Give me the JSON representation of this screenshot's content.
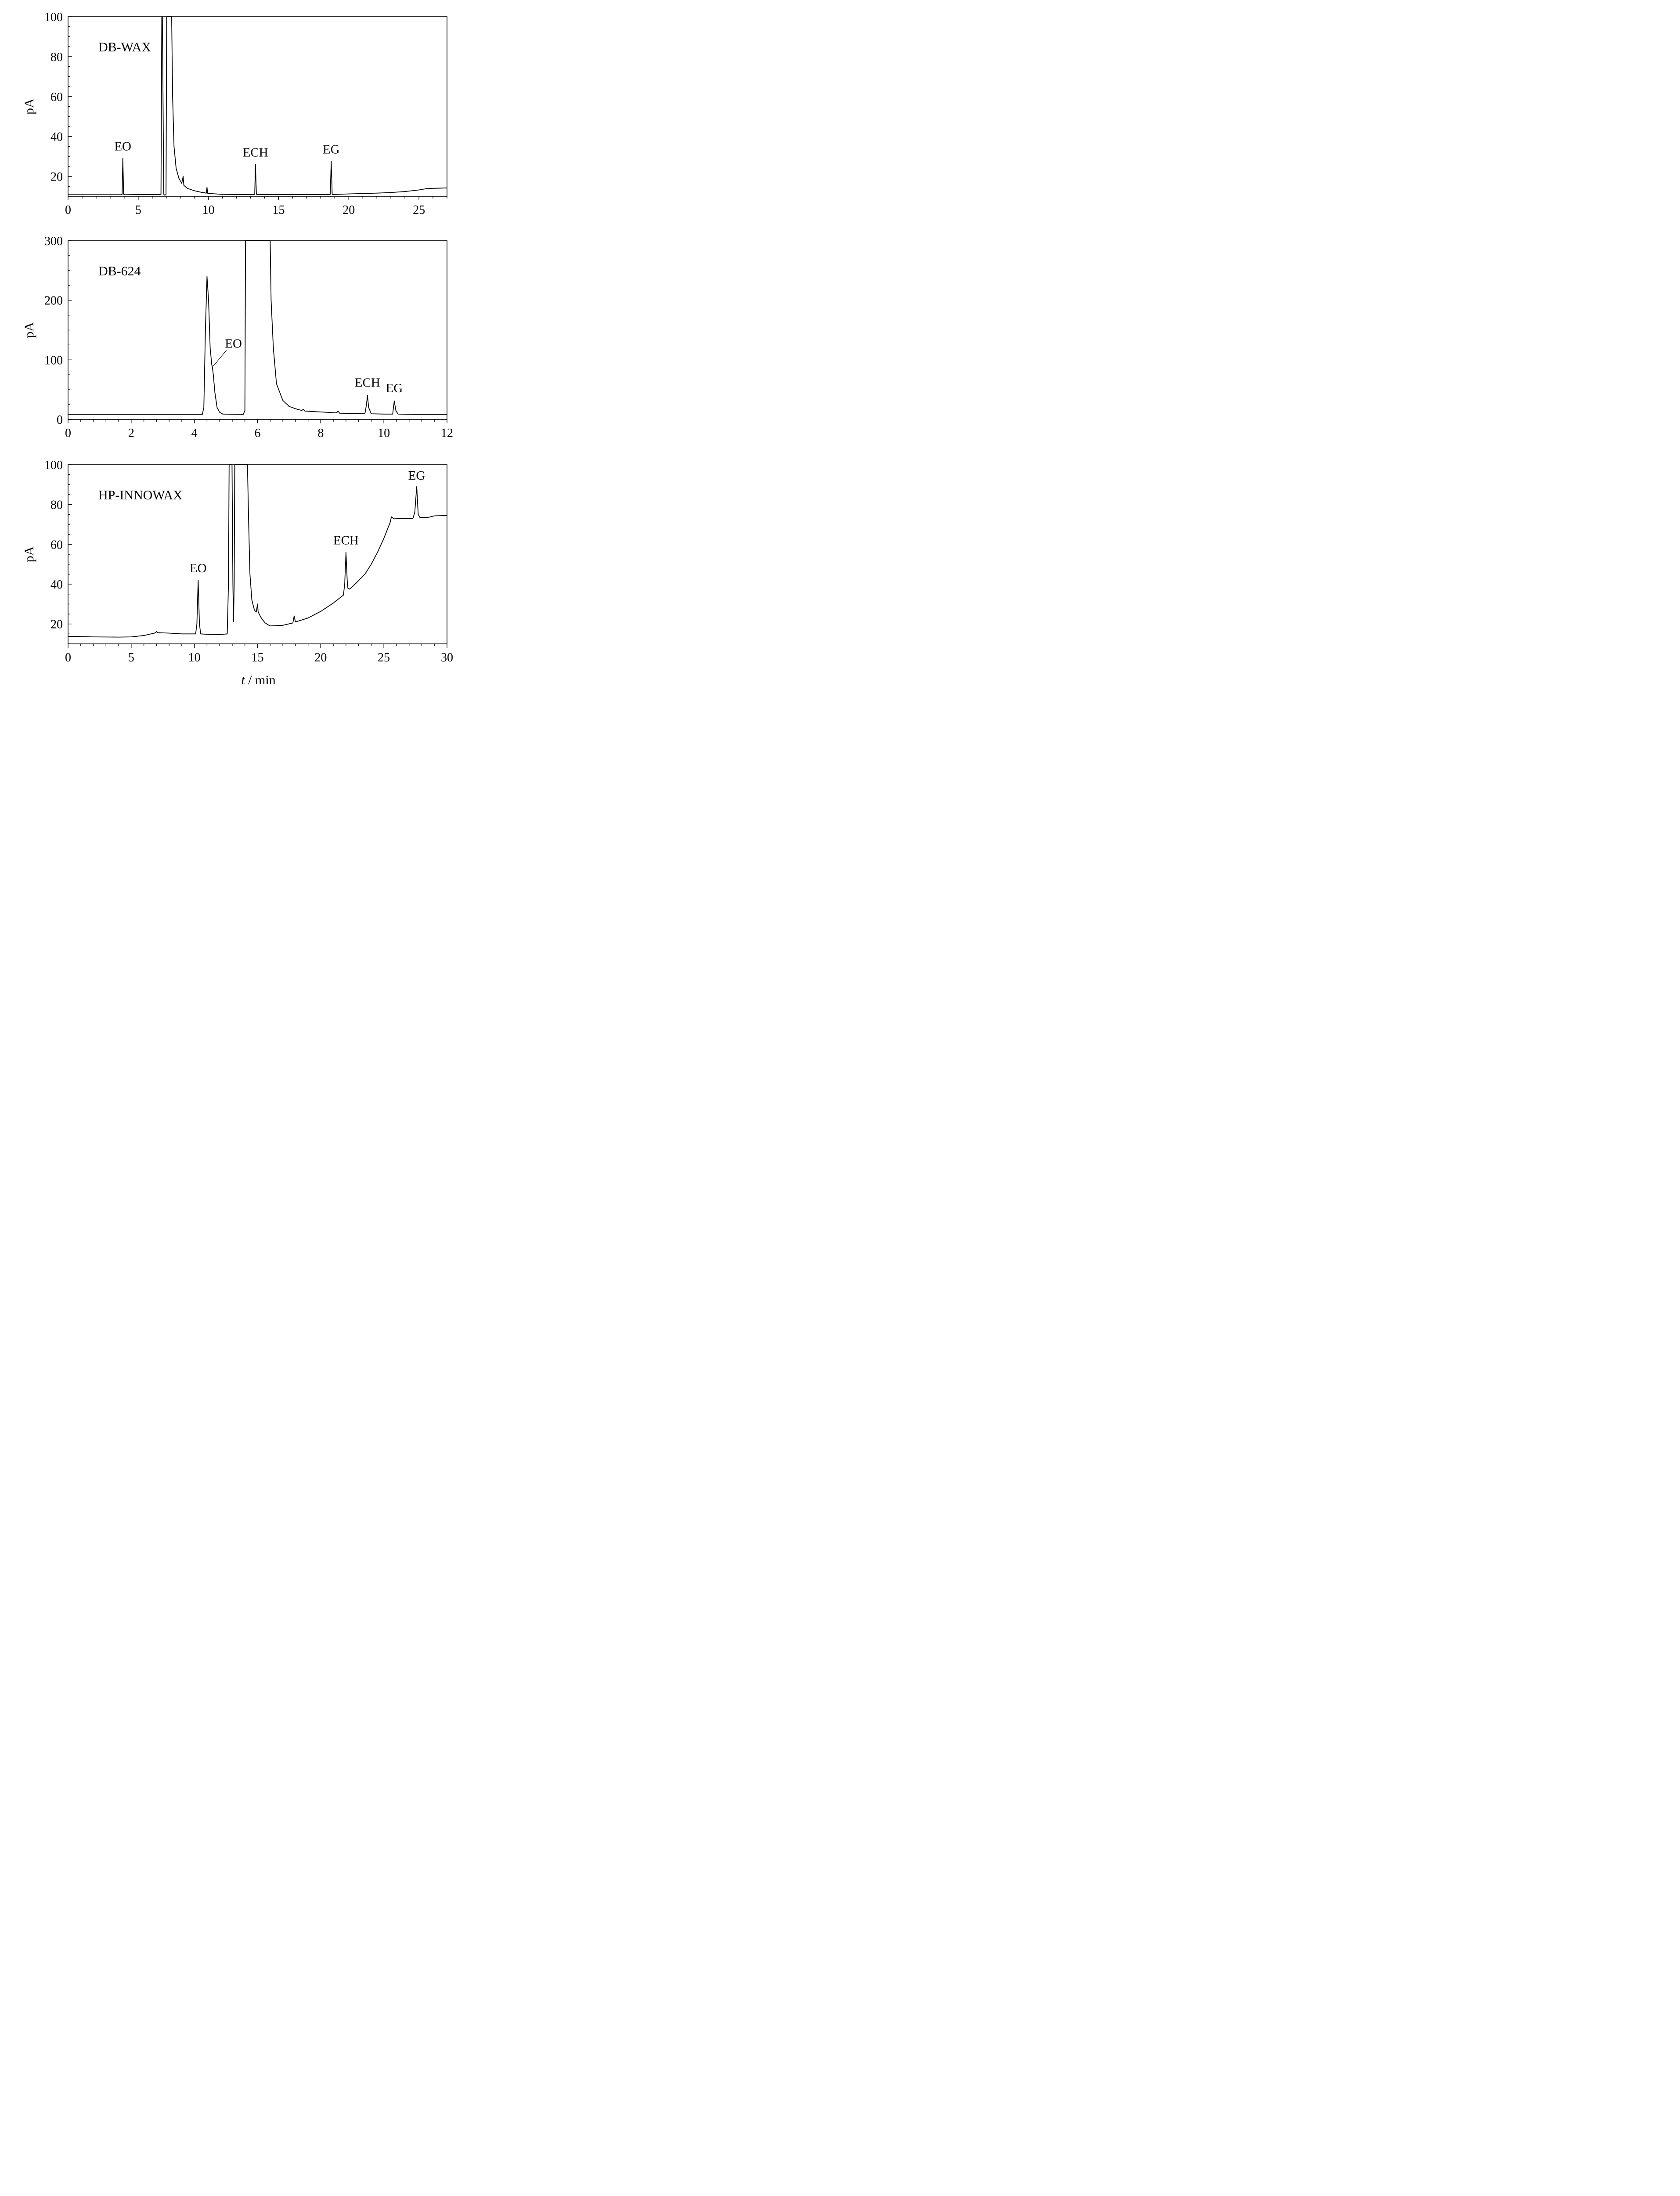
{
  "chart_data": [
    {
      "type": "line",
      "panel_label": "DB-WAX",
      "ylabel": "pA",
      "xlabel": "",
      "xlim": [
        0,
        27
      ],
      "ylim": [
        10,
        100
      ],
      "xticks": [
        0,
        5,
        10,
        15,
        20,
        25
      ],
      "yticks": [
        20,
        40,
        60,
        80,
        100
      ],
      "annotations": [
        {
          "text": "EO",
          "x": 3.9,
          "y": 29
        },
        {
          "text": "ECH",
          "x": 13.35,
          "y": 26
        },
        {
          "text": "EG",
          "x": 18.75,
          "y": 27.5
        }
      ],
      "series": [
        {
          "points": [
            [
              0,
              10.8
            ],
            [
              3.75,
              10.8
            ],
            [
              3.85,
              11
            ],
            [
              3.9,
              29
            ],
            [
              3.96,
              11
            ],
            [
              4.05,
              10.8
            ],
            [
              5,
              10.9
            ],
            [
              6.5,
              10.9
            ],
            [
              6.62,
              11
            ],
            [
              6.68,
              100
            ],
            [
              6.72,
              100
            ],
            [
              6.82,
              11
            ],
            [
              6.9,
              10.5
            ],
            [
              6.98,
              11
            ],
            [
              7.03,
              100
            ],
            [
              7.38,
              100
            ],
            [
              7.45,
              60
            ],
            [
              7.55,
              35
            ],
            [
              7.7,
              24
            ],
            [
              7.9,
              19
            ],
            [
              8.1,
              16.5
            ],
            [
              8.2,
              20
            ],
            [
              8.25,
              15.5
            ],
            [
              8.5,
              14
            ],
            [
              9,
              12.8
            ],
            [
              9.5,
              12
            ],
            [
              9.85,
              11.6
            ],
            [
              9.9,
              14.5
            ],
            [
              9.95,
              11.5
            ],
            [
              10.5,
              11.2
            ],
            [
              11,
              11
            ],
            [
              12,
              10.9
            ],
            [
              13.25,
              10.9
            ],
            [
              13.3,
              11
            ],
            [
              13.35,
              26
            ],
            [
              13.42,
              11
            ],
            [
              13.5,
              10.9
            ],
            [
              15,
              10.9
            ],
            [
              18.6,
              10.9
            ],
            [
              18.68,
              11
            ],
            [
              18.75,
              27.5
            ],
            [
              18.82,
              11
            ],
            [
              18.9,
              10.9
            ],
            [
              20,
              11.2
            ],
            [
              21,
              11.4
            ],
            [
              22,
              11.6
            ],
            [
              23,
              11.9
            ],
            [
              24,
              12.4
            ],
            [
              25,
              13.2
            ],
            [
              25.5,
              13.8
            ],
            [
              26,
              14
            ],
            [
              27,
              14.2
            ]
          ]
        }
      ]
    },
    {
      "type": "line",
      "panel_label": "DB-624",
      "ylabel": "pA",
      "xlabel": "",
      "xlim": [
        0,
        12
      ],
      "ylim": [
        0,
        300
      ],
      "xticks": [
        0,
        2,
        4,
        6,
        8,
        10,
        12
      ],
      "yticks": [
        0,
        100,
        200,
        300
      ],
      "annotations": [
        {
          "text": "EO",
          "x": 4.57,
          "y": 88
        },
        {
          "text": "ECH",
          "x": 9.48,
          "y": 40
        },
        {
          "text": "EG",
          "x": 10.33,
          "y": 31
        }
      ],
      "series": [
        {
          "points": [
            [
              0,
              8
            ],
            [
              4.25,
              8
            ],
            [
              4.3,
              20
            ],
            [
              4.35,
              150
            ],
            [
              4.4,
              240
            ],
            [
              4.45,
              200
            ],
            [
              4.5,
              120
            ],
            [
              4.55,
              92
            ],
            [
              4.57,
              88
            ],
            [
              4.6,
              75
            ],
            [
              4.65,
              45
            ],
            [
              4.72,
              20
            ],
            [
              4.8,
              12
            ],
            [
              4.9,
              9
            ],
            [
              5.55,
              8.5
            ],
            [
              5.6,
              15
            ],
            [
              5.62,
              300
            ],
            [
              6.4,
              300
            ],
            [
              6.43,
              200
            ],
            [
              6.5,
              120
            ],
            [
              6.6,
              60
            ],
            [
              6.8,
              32
            ],
            [
              7,
              22
            ],
            [
              7.2,
              18
            ],
            [
              7.4,
              15
            ],
            [
              7.45,
              17
            ],
            [
              7.5,
              14
            ],
            [
              8,
              12.5
            ],
            [
              8.5,
              11
            ],
            [
              8.55,
              14
            ],
            [
              8.6,
              10.5
            ],
            [
              9,
              10
            ],
            [
              9.4,
              9.5
            ],
            [
              9.45,
              25
            ],
            [
              9.48,
              40
            ],
            [
              9.52,
              20
            ],
            [
              9.6,
              9.5
            ],
            [
              10,
              9
            ],
            [
              10.28,
              9
            ],
            [
              10.33,
              31
            ],
            [
              10.38,
              15
            ],
            [
              10.45,
              9
            ],
            [
              11,
              8.5
            ],
            [
              12,
              8.5
            ]
          ]
        }
      ]
    },
    {
      "type": "line",
      "panel_label": "HP-INNOWAX",
      "ylabel": "pA",
      "xlabel": "t / min",
      "xlim": [
        0,
        30
      ],
      "ylim": [
        10,
        100
      ],
      "xticks": [
        0,
        5,
        10,
        15,
        20,
        25,
        30
      ],
      "yticks": [
        20,
        40,
        60,
        80,
        100
      ],
      "annotations": [
        {
          "text": "EO",
          "x": 10.3,
          "y": 42
        },
        {
          "text": "ECH",
          "x": 22,
          "y": 56
        },
        {
          "text": "EG",
          "x": 27.6,
          "y": 89
        }
      ],
      "series": [
        {
          "points": [
            [
              0,
              13.8
            ],
            [
              2,
              13.5
            ],
            [
              4,
              13.4
            ],
            [
              5,
              13.5
            ],
            [
              6,
              14.2
            ],
            [
              6.9,
              15.5
            ],
            [
              7,
              16.2
            ],
            [
              7.1,
              15.6
            ],
            [
              8,
              15.4
            ],
            [
              9,
              15
            ],
            [
              10.1,
              15
            ],
            [
              10.2,
              20
            ],
            [
              10.3,
              42
            ],
            [
              10.4,
              20
            ],
            [
              10.5,
              15
            ],
            [
              11,
              14.8
            ],
            [
              12,
              14.7
            ],
            [
              12.6,
              15
            ],
            [
              12.7,
              40
            ],
            [
              12.75,
              100
            ],
            [
              12.98,
              100
            ],
            [
              13.05,
              40
            ],
            [
              13.1,
              21
            ],
            [
              13.15,
              40
            ],
            [
              13.2,
              100
            ],
            [
              14.2,
              100
            ],
            [
              14.3,
              70
            ],
            [
              14.4,
              45
            ],
            [
              14.55,
              32
            ],
            [
              14.75,
              27
            ],
            [
              14.9,
              26
            ],
            [
              15,
              30
            ],
            [
              15.05,
              26
            ],
            [
              15.3,
              23
            ],
            [
              15.6,
              20.5
            ],
            [
              16,
              19
            ],
            [
              17,
              19.3
            ],
            [
              17.8,
              20.5
            ],
            [
              17.9,
              24
            ],
            [
              18,
              21
            ],
            [
              19,
              23
            ],
            [
              20,
              26.3
            ],
            [
              21,
              30.5
            ],
            [
              21.8,
              34.5
            ],
            [
              21.9,
              40
            ],
            [
              22,
              56
            ],
            [
              22.1,
              42
            ],
            [
              22.15,
              38
            ],
            [
              22.3,
              37.5
            ],
            [
              22.8,
              40.5
            ],
            [
              23.5,
              45
            ],
            [
              24,
              50
            ],
            [
              24.5,
              56
            ],
            [
              25,
              63
            ],
            [
              25.5,
              71
            ],
            [
              25.6,
              73.8
            ],
            [
              25.8,
              72.8
            ],
            [
              26.5,
              73
            ],
            [
              27.3,
              73
            ],
            [
              27.45,
              76
            ],
            [
              27.6,
              89
            ],
            [
              27.72,
              75
            ],
            [
              27.85,
              73.5
            ],
            [
              28.5,
              73.5
            ],
            [
              29,
              74.3
            ],
            [
              30,
              74.5
            ]
          ]
        }
      ]
    }
  ]
}
